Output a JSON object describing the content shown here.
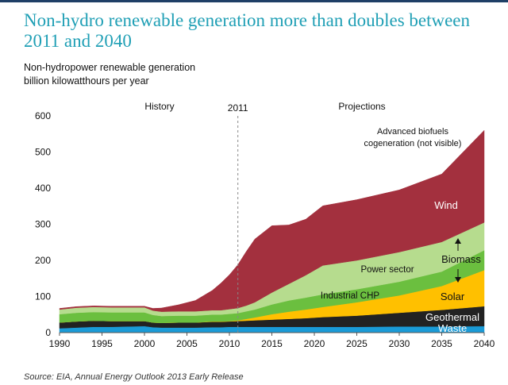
{
  "header": {
    "title": "Non-hydro renewable generation more than doubles between 2011 and 2040",
    "subtitle_line1": "Non-hydropower renewable generation",
    "subtitle_line2": "billion kilowatthours per year"
  },
  "footer": {
    "source": "Source:  EIA, Annual Energy Outlook 2013 Early Release"
  },
  "colors": {
    "waste": "#1a9bd7",
    "geothermal": "#222222",
    "solar": "#ffc000",
    "biomass_industrial": "#6bbf3f",
    "biomass_power": "#b6dc8e",
    "wind": "#a3303e",
    "divider": "#888888",
    "text": "#111111",
    "accent_title": "#1f9fb5"
  },
  "chart_data": {
    "type": "area",
    "stacked": true,
    "title": "Non-hydro renewable generation more than doubles between 2011 and 2040",
    "ylabel": "billion kilowatthours per year",
    "xlabel": "",
    "xlim": [
      1990,
      2040
    ],
    "ylim": [
      0,
      600
    ],
    "x_ticks": [
      1990,
      1995,
      2000,
      2005,
      2010,
      2015,
      2020,
      2025,
      2030,
      2035,
      2040
    ],
    "y_ticks": [
      0,
      100,
      200,
      300,
      400,
      500,
      600
    ],
    "grid": false,
    "divider_year": 2011,
    "x": [
      1990,
      1992,
      1994,
      1996,
      1998,
      2000,
      2001,
      2002,
      2004,
      2006,
      2008,
      2009,
      2010,
      2011,
      2012,
      2013,
      2015,
      2017,
      2019,
      2021,
      2025,
      2030,
      2035,
      2040
    ],
    "series": [
      {
        "name": "Waste",
        "label": "Waste",
        "color_key": "waste",
        "values": [
          12,
          14,
          16,
          16,
          17,
          18,
          15,
          14,
          14,
          14,
          15,
          15,
          16,
          16,
          16,
          16,
          16,
          16,
          16,
          16,
          16,
          17,
          17,
          18
        ]
      },
      {
        "name": "Geothermal",
        "label": "Geothermal",
        "color_key": "geothermal",
        "values": [
          16,
          17,
          17,
          16,
          15,
          14,
          13,
          13,
          14,
          14,
          15,
          15,
          15,
          16,
          17,
          18,
          20,
          22,
          24,
          27,
          31,
          38,
          46,
          55
        ]
      },
      {
        "name": "Solar",
        "label": "Solar",
        "color_key": "solar",
        "values": [
          0,
          0,
          0,
          0,
          0,
          0,
          0,
          0,
          0,
          0,
          1,
          1,
          1,
          2,
          5,
          8,
          15,
          20,
          24,
          28,
          37,
          48,
          66,
          100
        ]
      },
      {
        "name": "Industrial CHP",
        "label": "Industrial CHP",
        "color_key": "biomass_industrial",
        "values": [
          23,
          24,
          24,
          24,
          24,
          24,
          21,
          19,
          19,
          19,
          19,
          19,
          20,
          20,
          21,
          22,
          27,
          31,
          33,
          35,
          36,
          38,
          40,
          55
        ]
      },
      {
        "name": "Power sector",
        "label": "Power sector",
        "color_key": "biomass_power",
        "values": [
          13,
          14,
          14,
          14,
          14,
          14,
          12,
          12,
          12,
          12,
          12,
          12,
          13,
          14,
          16,
          20,
          33,
          46,
          62,
          80,
          80,
          82,
          82,
          77
        ]
      },
      {
        "name": "Wind",
        "label": "Wind",
        "color_key": "wind",
        "values": [
          3,
          3,
          3,
          3,
          3,
          3,
          6,
          10,
          18,
          30,
          55,
          75,
          95,
          120,
          150,
          175,
          185,
          163,
          155,
          165,
          168,
          172,
          188,
          255
        ]
      },
      {
        "name": "Advanced biofuels cogeneration",
        "label": "Advanced biofuels cogeneration (not visible)",
        "color_key": "wind",
        "values": [
          0,
          0,
          0,
          0,
          0,
          0,
          0,
          0,
          0,
          0,
          0,
          0,
          0,
          0,
          0,
          0,
          0,
          0,
          0,
          0,
          0,
          0,
          0,
          0
        ]
      }
    ],
    "annotations": {
      "history": "History",
      "projections": "Projections",
      "divider_label": "2011",
      "advanced_line1": "Advanced biofuels",
      "advanced_line2": "cogeneration (not visible)",
      "wind": "Wind",
      "biomass": "Biomass",
      "power_sector": "Power sector",
      "industrial_chp": "Industrial CHP",
      "solar": "Solar",
      "geothermal": "Geothermal",
      "waste": "Waste"
    }
  }
}
